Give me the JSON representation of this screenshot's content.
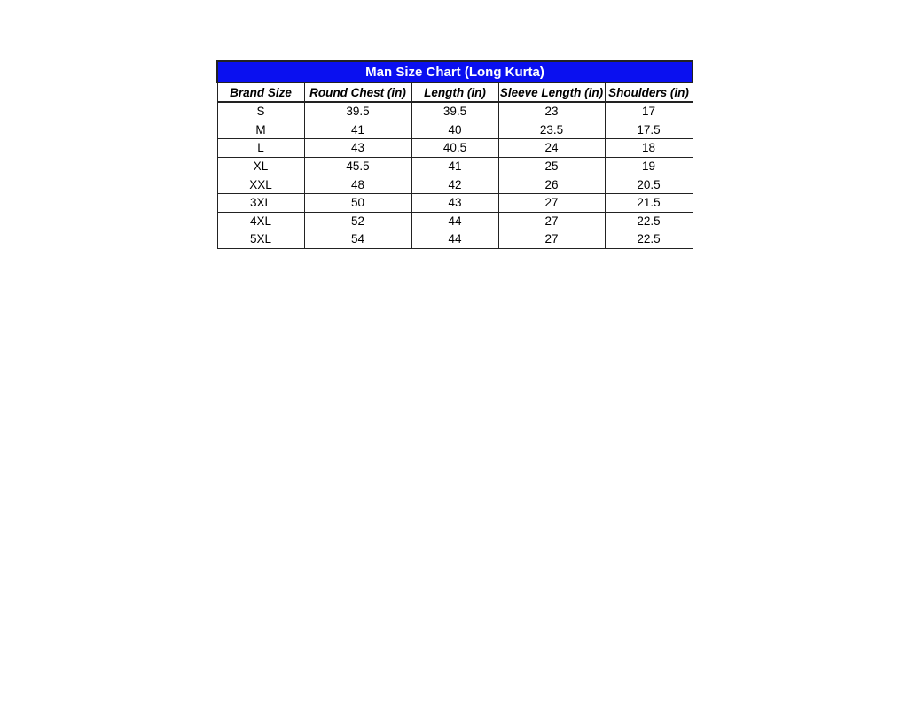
{
  "table": {
    "title": "Man Size Chart (Long Kurta)",
    "colors": {
      "title_bg": "#0a10f0",
      "title_text": "#ffffff"
    },
    "headers": [
      "Brand Size",
      "Round Chest (in)",
      "Length (in)",
      "Sleeve Length (in)",
      "Shoulders (in)"
    ],
    "rows": [
      [
        "S",
        "39.5",
        "39.5",
        "23",
        "17"
      ],
      [
        "M",
        "41",
        "40",
        "23.5",
        "17.5"
      ],
      [
        "L",
        "43",
        "40.5",
        "24",
        "18"
      ],
      [
        "XL",
        "45.5",
        "41",
        "25",
        "19"
      ],
      [
        "XXL",
        "48",
        "42",
        "26",
        "20.5"
      ],
      [
        "3XL",
        "50",
        "43",
        "27",
        "21.5"
      ],
      [
        "4XL",
        "52",
        "44",
        "27",
        "22.5"
      ],
      [
        "5XL",
        "54",
        "44",
        "27",
        "22.5"
      ]
    ]
  }
}
